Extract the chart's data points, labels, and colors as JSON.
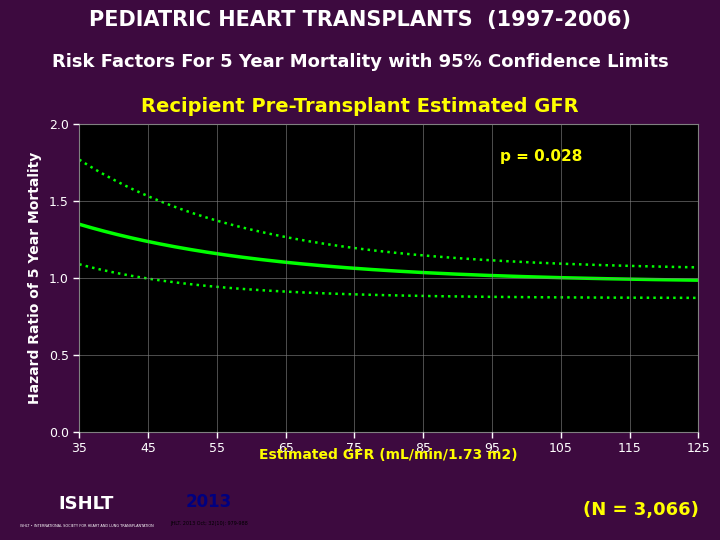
{
  "title_line1": "PEDIATRIC HEART TRANSPLANTS  (1997-2006)",
  "title_line2": "Risk Factors For 5 Year Mortality with 95% Confidence Limits",
  "title_line3": "Recipient Pre-Transplant Estimated GFR",
  "xlabel": "Estimated GFR (mL/min/1.73 m2)",
  "ylabel": "Hazard Ratio of 5 Year Mortality",
  "p_value": "p = 0.028",
  "n_label": "(N = 3,066)",
  "xlim": [
    35,
    125
  ],
  "ylim": [
    0.0,
    2.0
  ],
  "xticks": [
    35,
    45,
    55,
    65,
    75,
    85,
    95,
    105,
    115,
    125
  ],
  "yticks": [
    0.0,
    0.5,
    1.0,
    1.5,
    2.0
  ],
  "bg_outer": "#3d0a3f",
  "bg_plot": "#000000",
  "line_color": "#00ff00",
  "ci_color": "#00ff00",
  "text_color_white": "#ffffff",
  "text_color_yellow": "#ffff00",
  "grid_color": "#808080",
  "title_fontsize": 15,
  "subtitle_fontsize": 13,
  "subtitle3_fontsize": 14,
  "axis_label_fontsize": 10,
  "tick_fontsize": 9,
  "p_fontsize": 11,
  "n_fontsize": 13,
  "logo_red": "#cc0000",
  "logo_white": "#ffffff",
  "logo_navy": "#000080"
}
